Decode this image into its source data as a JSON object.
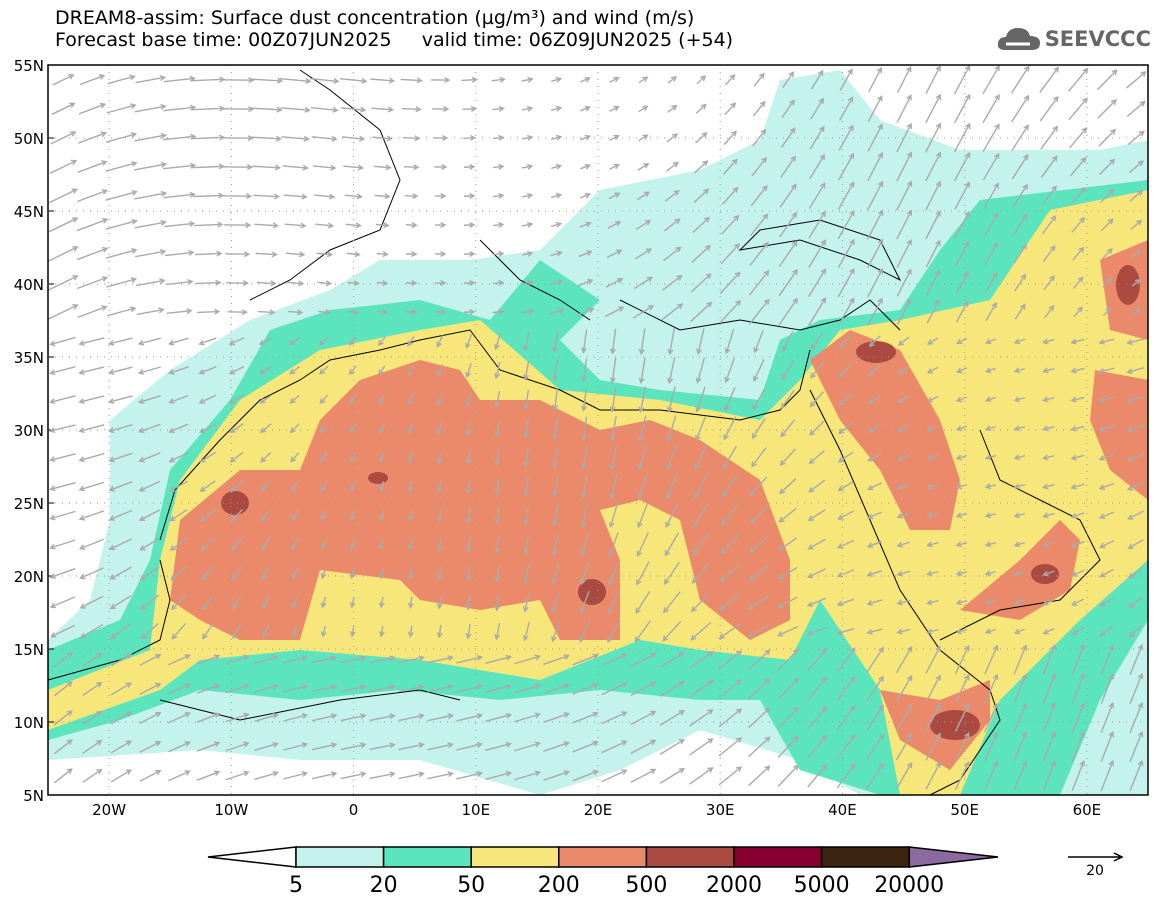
{
  "header": {
    "title_line1": "DREAM8-assim: Surface dust concentration (µg/m³) and wind (m/s)",
    "title_line2": "Forecast base time: 00Z07JUN2025     valid time: 06Z09JUN2025 (+54)",
    "logo": "SEEVCCC"
  },
  "map": {
    "lat_labels": [
      "55N",
      "50N",
      "45N",
      "40N",
      "35N",
      "30N",
      "25N",
      "20N",
      "15N",
      "10N",
      "5N"
    ],
    "lon_labels": [
      "20W",
      "10W",
      "0",
      "10E",
      "20E",
      "30E",
      "40E",
      "50E",
      "60E"
    ]
  },
  "colorbar": {
    "labels": [
      "5",
      "20",
      "50",
      "200",
      "500",
      "2000",
      "5000",
      "20000"
    ],
    "colors": [
      "#ffffff",
      "#c4f2ec",
      "#5ce5bd",
      "#f7e67a",
      "#ea8a6a",
      "#aa4a40",
      "#870030",
      "#3c2410",
      "#8c6aa0"
    ]
  },
  "wind_key": {
    "label": "20"
  }
}
